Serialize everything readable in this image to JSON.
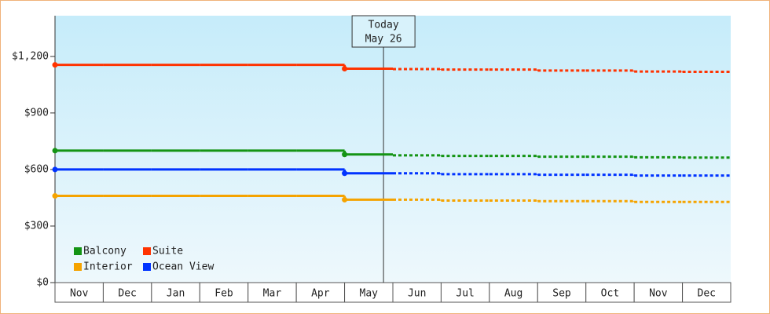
{
  "chart_data": {
    "type": "line",
    "categories": [
      "Nov",
      "Dec",
      "Jan",
      "Feb",
      "Mar",
      "Apr",
      "May",
      "Jun",
      "Jul",
      "Aug",
      "Sep",
      "Oct",
      "Nov",
      "Dec"
    ],
    "series": [
      {
        "name": "Balcony",
        "color": "#149414",
        "values": [
          700,
          700,
          700,
          700,
          700,
          700,
          680,
          675,
          672,
          672,
          668,
          668,
          665,
          663
        ]
      },
      {
        "name": "Suite",
        "color": "#ff3300",
        "values": [
          1155,
          1155,
          1155,
          1155,
          1155,
          1155,
          1135,
          1133,
          1130,
          1130,
          1125,
          1125,
          1120,
          1118
        ]
      },
      {
        "name": "Interior",
        "color": "#f5a300",
        "values": [
          460,
          460,
          460,
          460,
          460,
          460,
          440,
          440,
          435,
          435,
          432,
          432,
          428,
          428
        ]
      },
      {
        "name": "Ocean View",
        "color": "#0033ff",
        "values": [
          600,
          600,
          600,
          600,
          600,
          600,
          580,
          580,
          575,
          575,
          572,
          572,
          568,
          568
        ]
      }
    ],
    "ylim": [
      0,
      1416
    ],
    "yticks": [
      {
        "value": 0,
        "label": "$0"
      },
      {
        "value": 300,
        "label": "$300"
      },
      {
        "value": 600,
        "label": "$600"
      },
      {
        "value": 900,
        "label": "$900"
      },
      {
        "value": 1200,
        "label": "$1,200"
      }
    ],
    "annotation": {
      "label": "Today",
      "date": "May 26"
    },
    "legend": "bottom-left"
  }
}
